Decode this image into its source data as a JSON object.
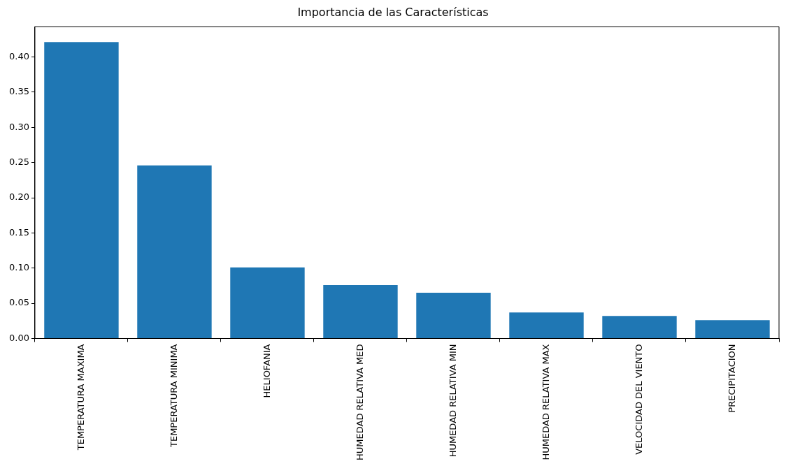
{
  "chart_data": {
    "type": "bar",
    "title": "Importancia de las Características",
    "categories": [
      "TEMPERATURA MAXIMA",
      "TEMPERATURA MINIMA",
      "HELIOFANIA",
      "HUMEDAD RELATIVA MED",
      "HUMEDAD RELATIVA MIN",
      "HUMEDAD RELATIVA MAX",
      "VELOCIDAD DEL VIENTO",
      "PRECIPITACION"
    ],
    "values": [
      0.421,
      0.246,
      0.101,
      0.076,
      0.065,
      0.037,
      0.032,
      0.026
    ],
    "color": "#1f77b4",
    "ylim": [
      0,
      0.443
    ],
    "yticks": [
      {
        "value": 0,
        "label": "0.00"
      },
      {
        "value": 0.05,
        "label": "0.05"
      },
      {
        "value": 0.1,
        "label": "0.10"
      },
      {
        "value": 0.15,
        "label": "0.15"
      },
      {
        "value": 0.2,
        "label": "0.20"
      },
      {
        "value": 0.25,
        "label": "0.25"
      },
      {
        "value": 0.3,
        "label": "0.30"
      },
      {
        "value": 0.35,
        "label": "0.35"
      },
      {
        "value": 0.4,
        "label": "0.40"
      }
    ]
  }
}
